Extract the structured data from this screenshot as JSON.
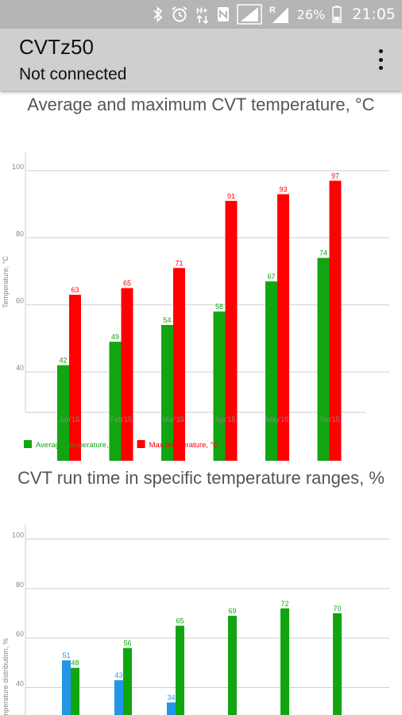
{
  "status_bar": {
    "battery_percent": "26%",
    "time": "21:05",
    "icons": [
      "bluetooth-icon",
      "alarm-icon",
      "hplus-data-icon",
      "nfc-icon",
      "signal-icon",
      "roaming-signal-icon",
      "battery-icon"
    ],
    "hplus_label": "H+",
    "roaming_label": "R"
  },
  "app_bar": {
    "title": "CVTz50",
    "subtitle": "Not connected"
  },
  "chart_data": [
    {
      "type": "bar",
      "title": "Average and maximum CVT temperature, °C",
      "ylabel": "Temperature, °C",
      "xlabel": "",
      "categories": [
        "Jan'15",
        "Feb'15",
        "Mar'15",
        "Apr'15",
        "May'15",
        "Jun'15"
      ],
      "series": [
        {
          "name": "Average temperature, °C",
          "color": "#11a611",
          "values": [
            42,
            49,
            54,
            58,
            67,
            74
          ]
        },
        {
          "name": "Max temperature, °C",
          "color": "#ff0000",
          "values": [
            63,
            65,
            71,
            91,
            93,
            97
          ]
        }
      ],
      "ylim": [
        36,
        104
      ],
      "yticks": [
        40,
        60,
        80,
        100
      ],
      "grid": true,
      "legend": "bottom-left"
    },
    {
      "type": "bar",
      "title": "CVT run time in specific temperature ranges, %",
      "ylabel": "Temperature distribution, %",
      "xlabel": "",
      "categories": [
        "",
        "",
        "",
        "",
        "",
        ""
      ],
      "series": [
        {
          "name": "",
          "color": "#2196e6",
          "values": [
            51,
            43,
            34,
            null,
            null,
            null
          ]
        },
        {
          "name": "",
          "color": "#11a611",
          "values": [
            48,
            56,
            65,
            69,
            72,
            70
          ]
        }
      ],
      "ylim": [
        36,
        104
      ],
      "yticks": [
        40,
        60,
        80,
        100
      ],
      "grid": true,
      "legend": "none"
    }
  ]
}
